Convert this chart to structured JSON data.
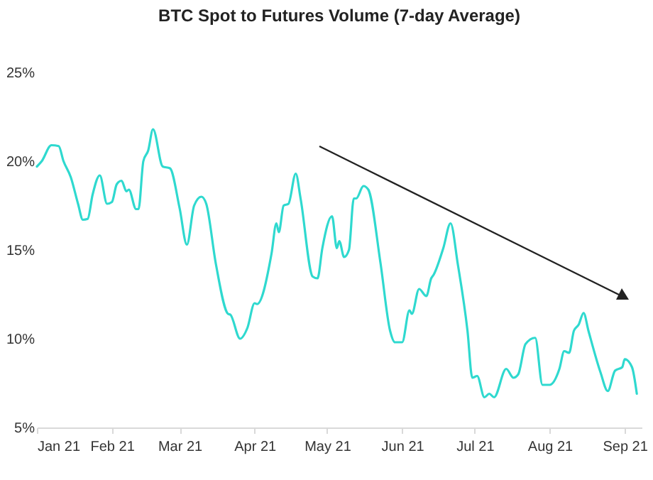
{
  "chart_data": {
    "type": "line",
    "title": "BTC Spot to Futures Volume (7-day Average)",
    "x": [
      "2021-01-01",
      "2021-01-03",
      "2021-01-07",
      "2021-01-10",
      "2021-01-12",
      "2021-01-15",
      "2021-01-18",
      "2021-01-20",
      "2021-01-22",
      "2021-01-24",
      "2021-01-27",
      "2021-01-30",
      "2021-02-01",
      "2021-02-03",
      "2021-02-05",
      "2021-02-07",
      "2021-02-08",
      "2021-02-11",
      "2021-02-12",
      "2021-02-14",
      "2021-02-16",
      "2021-02-18",
      "2021-02-22",
      "2021-02-25",
      "2021-03-01",
      "2021-03-04",
      "2021-03-07",
      "2021-03-10",
      "2021-03-12",
      "2021-03-16",
      "2021-03-21",
      "2021-03-22",
      "2021-03-26",
      "2021-03-29",
      "2021-04-01",
      "2021-04-02",
      "2021-04-08",
      "2021-04-10",
      "2021-04-11",
      "2021-04-13",
      "2021-04-15",
      "2021-04-18",
      "2021-04-20",
      "2021-04-25",
      "2021-04-27",
      "2021-04-29",
      "2021-05-03",
      "2021-05-05",
      "2021-05-06",
      "2021-05-08",
      "2021-05-10",
      "2021-05-12",
      "2021-05-13",
      "2021-05-16",
      "2021-05-18",
      "2021-05-23",
      "2021-05-27",
      "2021-05-29",
      "2021-06-01",
      "2021-06-04",
      "2021-06-05",
      "2021-06-08",
      "2021-06-11",
      "2021-06-13",
      "2021-06-14",
      "2021-06-18",
      "2021-06-21",
      "2021-06-24",
      "2021-06-28",
      "2021-06-30",
      "2021-07-02",
      "2021-07-05",
      "2021-07-07",
      "2021-07-09",
      "2021-07-14",
      "2021-07-17",
      "2021-07-19",
      "2021-07-22",
      "2021-07-26",
      "2021-07-29",
      "2021-08-01",
      "2021-08-05",
      "2021-08-07",
      "2021-08-09",
      "2021-08-11",
      "2021-08-13",
      "2021-08-15",
      "2021-08-17",
      "2021-08-22",
      "2021-08-25",
      "2021-08-28",
      "2021-08-31",
      "2021-09-01",
      "2021-09-04",
      "2021-09-06"
    ],
    "values": [
      19.7,
      20.0,
      20.9,
      20.85,
      20.0,
      19.1,
      17.6,
      16.7,
      16.75,
      18.1,
      19.2,
      17.6,
      17.7,
      18.7,
      18.9,
      18.3,
      18.4,
      17.3,
      17.3,
      20.0,
      20.6,
      21.8,
      19.7,
      19.6,
      17.35,
      15.3,
      17.5,
      18.0,
      17.6,
      14.2,
      11.4,
      11.35,
      10.0,
      10.6,
      12.0,
      11.95,
      14.8,
      16.5,
      16.0,
      17.5,
      17.6,
      19.3,
      17.9,
      13.5,
      13.4,
      15.1,
      16.9,
      15.1,
      15.5,
      14.6,
      15.0,
      17.9,
      17.9,
      18.6,
      18.4,
      14.3,
      10.45,
      9.8,
      9.8,
      11.6,
      11.4,
      12.8,
      12.4,
      13.4,
      13.6,
      15.1,
      16.5,
      14.2,
      10.45,
      7.8,
      7.9,
      6.7,
      6.9,
      6.7,
      8.3,
      7.8,
      8.0,
      9.7,
      10.05,
      7.4,
      7.4,
      8.3,
      9.3,
      9.2,
      10.45,
      10.8,
      11.45,
      10.45,
      8.1,
      7.05,
      8.2,
      8.4,
      8.85,
      8.4,
      6.9
    ],
    "color": "#2fd9cf",
    "xlim": [
      "2021-01-01",
      "2021-09-08"
    ],
    "xticks": [
      {
        "value": "2021-01-01",
        "label": "Jan 21"
      },
      {
        "value": "2021-02-01",
        "label": "Feb 21"
      },
      {
        "value": "2021-03-01",
        "label": "Mar 21"
      },
      {
        "value": "2021-04-01",
        "label": "Apr 21"
      },
      {
        "value": "2021-05-01",
        "label": "May 21"
      },
      {
        "value": "2021-06-01",
        "label": "Jun 21"
      },
      {
        "value": "2021-07-01",
        "label": "Jul 21"
      },
      {
        "value": "2021-08-01",
        "label": "Aug 21"
      },
      {
        "value": "2021-09-01",
        "label": "Sep 21"
      }
    ],
    "ylim": [
      5,
      25
    ],
    "yticks": [
      {
        "value": 5,
        "label": "5%"
      },
      {
        "value": 10,
        "label": "10%"
      },
      {
        "value": 15,
        "label": "15%"
      },
      {
        "value": 20,
        "label": "20%"
      },
      {
        "value": 25,
        "label": "25%"
      }
    ],
    "grid": false
  }
}
